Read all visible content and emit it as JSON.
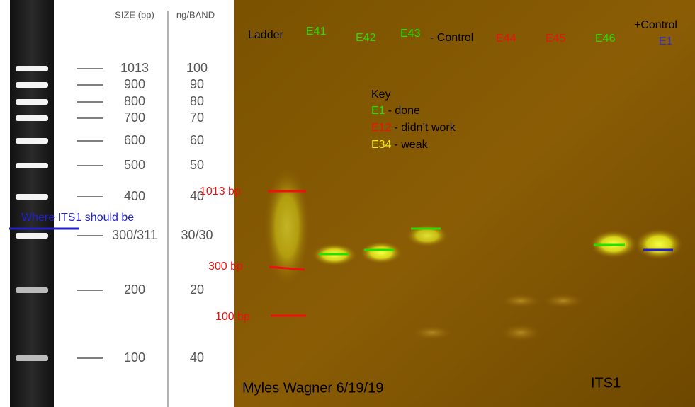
{
  "ladder": {
    "headers": [
      "SIZE (bp)",
      "ng/BAND"
    ],
    "rows": [
      {
        "size": "1013",
        "ng": "100"
      },
      {
        "size": "900",
        "ng": "90"
      },
      {
        "size": "800",
        "ng": "80"
      },
      {
        "size": "700",
        "ng": "70"
      },
      {
        "size": "600",
        "ng": "60"
      },
      {
        "size": "500",
        "ng": "50"
      },
      {
        "size": "400",
        "ng": "40"
      },
      {
        "size": "300/311",
        "ng": "30/30"
      },
      {
        "size": "200",
        "ng": "20"
      },
      {
        "size": "100",
        "ng": "40"
      }
    ]
  },
  "annotation": "Where ITS1 should be",
  "lanes": [
    "Ladder",
    "E41",
    "E42",
    "E43",
    "- Control",
    "E44",
    "E45",
    "E46",
    "+Control",
    "E1"
  ],
  "key": {
    "title": "Key",
    "items": [
      {
        "code": "E1",
        "text": "- done"
      },
      {
        "code": "E12",
        "text": "- didn’t work"
      },
      {
        "code": "E34",
        "text": "- weak"
      }
    ]
  },
  "markers": [
    "1013 bp",
    "300 bp",
    "100 bp"
  ],
  "footer": {
    "author": "Myles Wagner 6/19/19",
    "label": "ITS1"
  }
}
